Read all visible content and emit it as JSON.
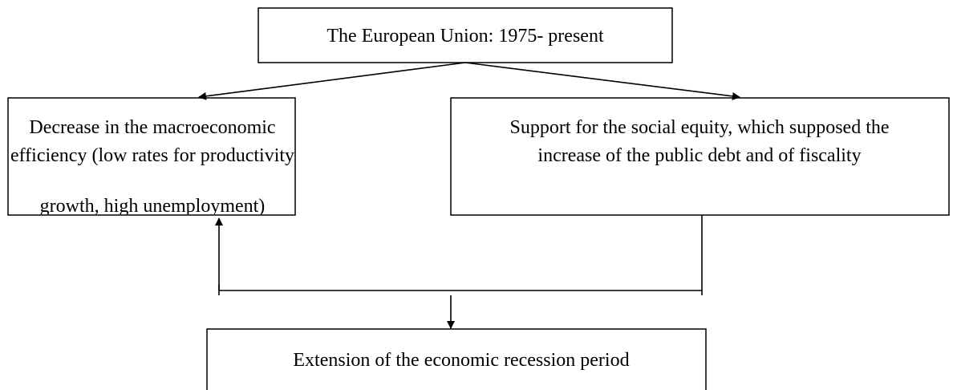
{
  "nodes": [
    {
      "lines": [
        "The European Union: 1975- present"
      ]
    },
    {
      "lines": [
        "Decrease in the macroeconomic",
        "efficiency (low rates for productivity",
        "growth, high unemployment)"
      ]
    },
    {
      "lines": [
        "Support for the social equity, which supposed the",
        "increase of the public debt and of fiscality"
      ]
    },
    {
      "lines": [
        "Extension of the economic recession period"
      ]
    }
  ]
}
